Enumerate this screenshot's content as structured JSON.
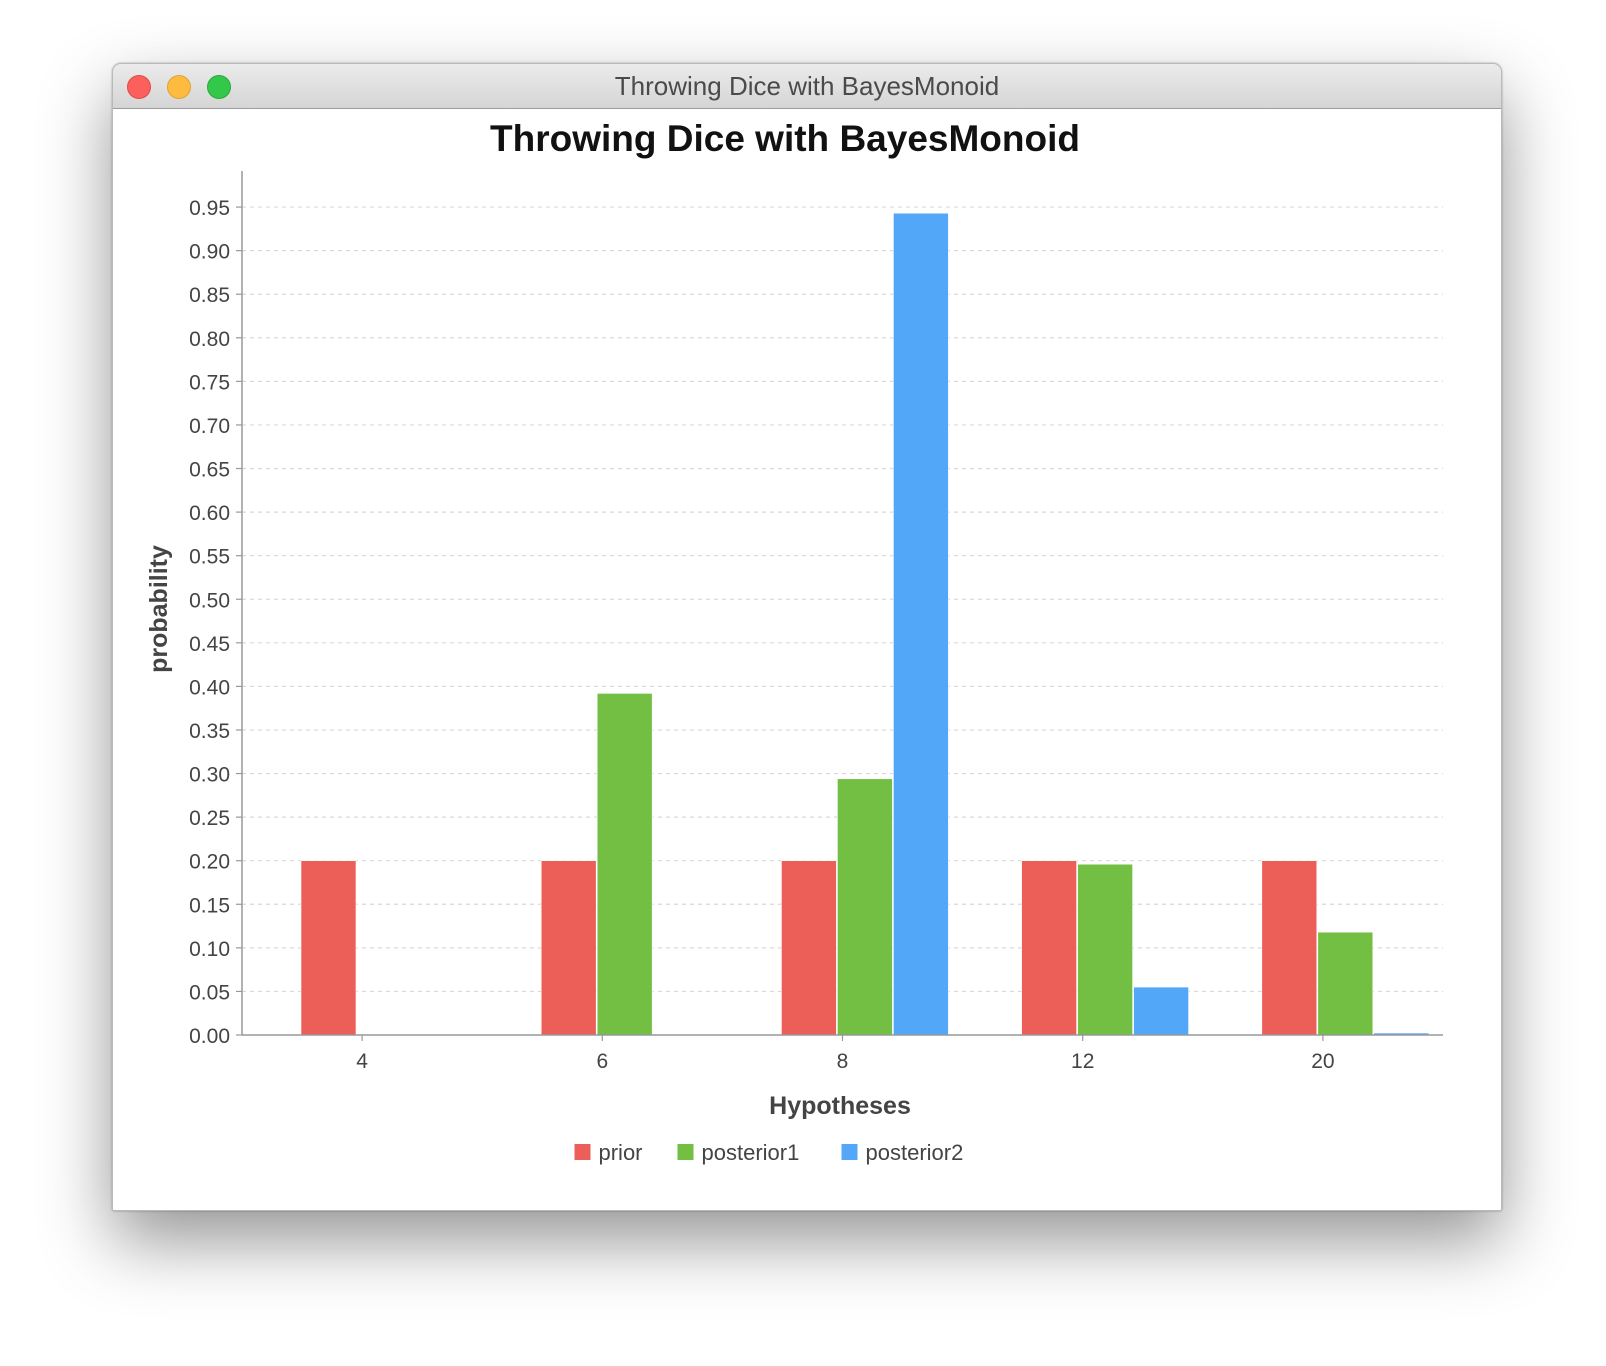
{
  "window": {
    "title": "Throwing Dice with BayesMonoid"
  },
  "chart_data": {
    "type": "bar",
    "title": "Throwing Dice with BayesMonoid",
    "xlabel": "Hypotheses",
    "ylabel": "probability",
    "categories": [
      "4",
      "6",
      "8",
      "12",
      "20"
    ],
    "series": [
      {
        "name": "prior",
        "color": "#ec5f59",
        "values": [
          0.2,
          0.2,
          0.2,
          0.2,
          0.2
        ]
      },
      {
        "name": "posterior1",
        "color": "#72bf44",
        "values": [
          0.0,
          0.392,
          0.294,
          0.196,
          0.118
        ]
      },
      {
        "name": "posterior2",
        "color": "#52a7f9",
        "values": [
          0.0,
          0.0,
          0.943,
          0.055,
          0.002
        ]
      }
    ],
    "ylim": [
      0,
      0.99
    ],
    "yticks": [
      "0.00",
      "0.05",
      "0.10",
      "0.15",
      "0.20",
      "0.25",
      "0.30",
      "0.35",
      "0.40",
      "0.45",
      "0.50",
      "0.55",
      "0.60",
      "0.65",
      "0.70",
      "0.75",
      "0.80",
      "0.85",
      "0.90",
      "0.95"
    ],
    "grid": true,
    "legend_position": "bottom"
  }
}
